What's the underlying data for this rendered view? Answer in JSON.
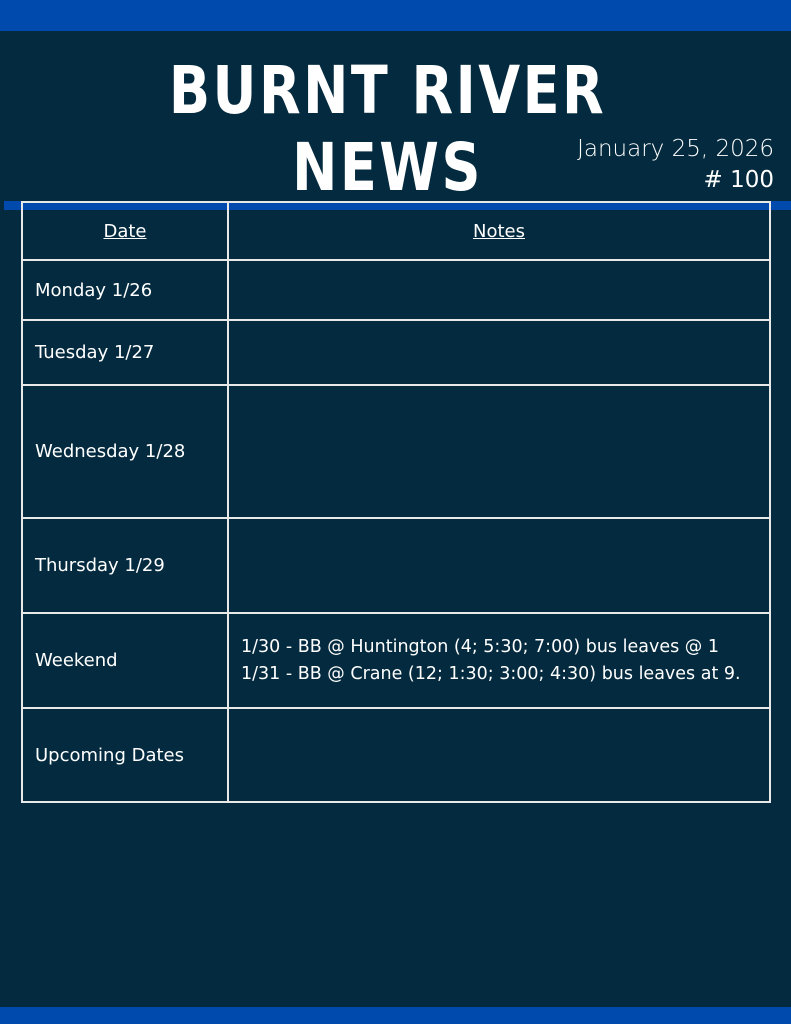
{
  "header": {
    "title": "BURNT RIVER NEWS",
    "date": "January 25, 2026",
    "issue": "# 100"
  },
  "colors": {
    "background": "#032a3e",
    "accent": "#004aad"
  },
  "table": {
    "headers": [
      "Date",
      "Notes"
    ],
    "rows": [
      {
        "day": "Monday 1/26",
        "notes": [
          "",
          ""
        ]
      },
      {
        "day": "Tuesday 1/27",
        "notes": [
          "",
          ""
        ]
      },
      {
        "day": "Wednesday 1/28",
        "notes": [
          "",
          ""
        ]
      },
      {
        "day": "Thursday 1/29",
        "notes": [
          "",
          ""
        ]
      },
      {
        "day": "Weekend",
        "notes": [
          "1/30 - BB @ Huntington (4; 5:30; 7:00) bus leaves @ 1",
          "1/31 - BB @ Crane (12; 1:30; 3:00; 4:30) bus leaves at 9."
        ]
      },
      {
        "day": "Upcoming Dates",
        "notes": [
          "",
          ""
        ]
      }
    ]
  }
}
